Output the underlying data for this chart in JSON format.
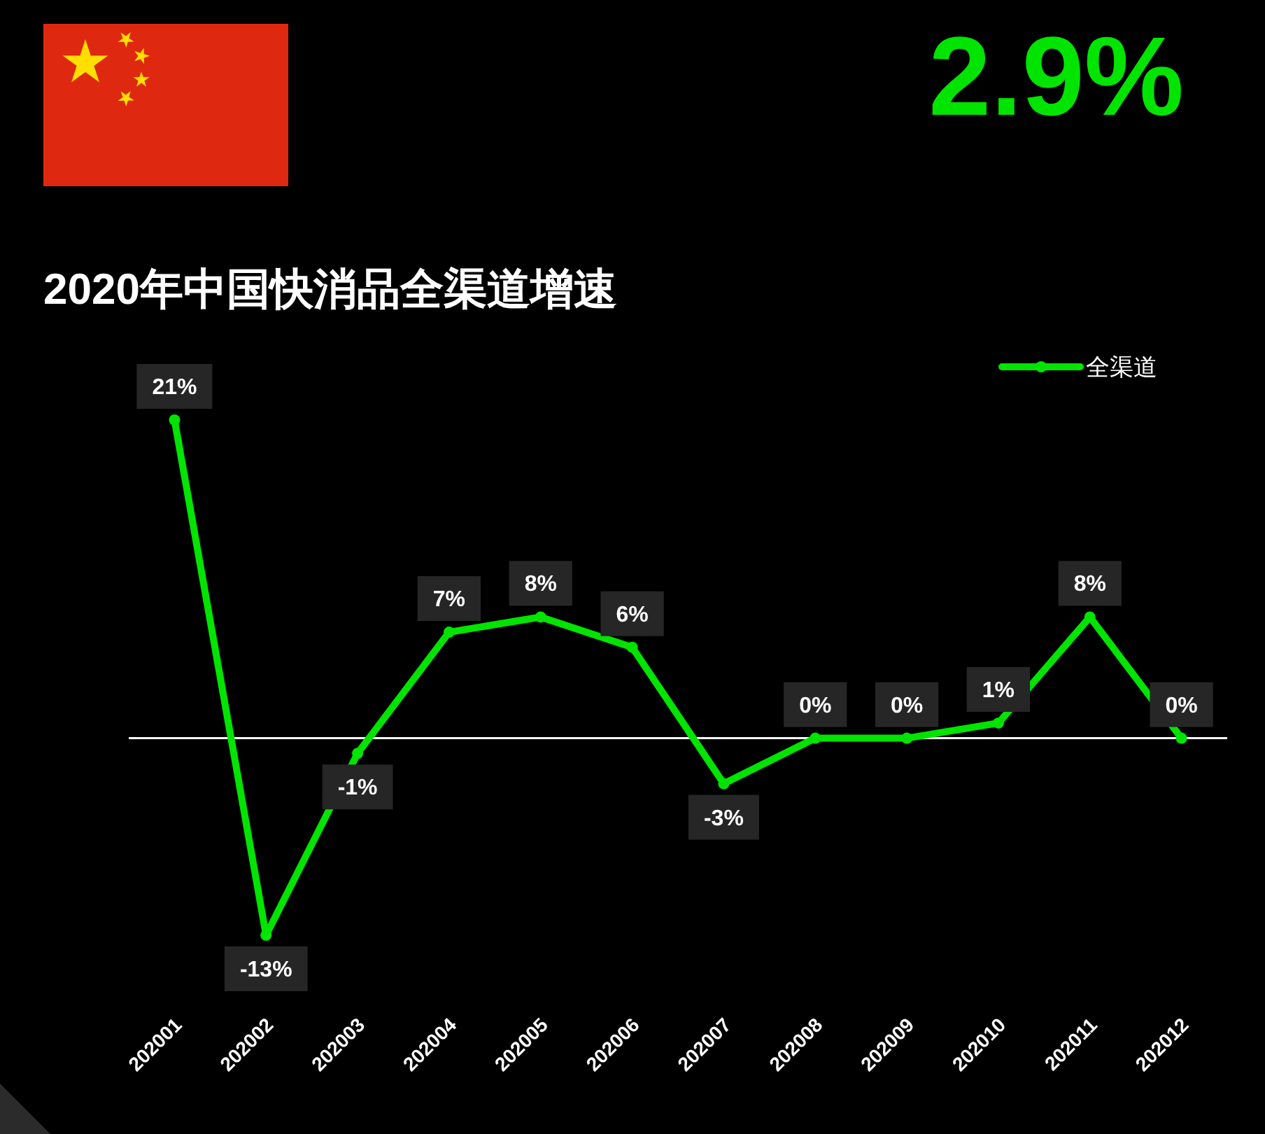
{
  "chart_data": {
    "type": "line",
    "title": "2020年中国快消品全渠道增速",
    "annotations": [
      "2.9%"
    ],
    "categories": [
      "202001",
      "202002",
      "202003",
      "202004",
      "202005",
      "202006",
      "202007",
      "202008",
      "202009",
      "202010",
      "202011",
      "202012"
    ],
    "series": [
      {
        "name": "全渠道",
        "color": "#00e400",
        "values": [
          21,
          -13,
          -1,
          7,
          8,
          6,
          -3,
          0,
          0,
          1,
          8,
          0
        ],
        "value_labels": [
          "21%",
          "-13%",
          "-1%",
          "7%",
          "8%",
          "6%",
          "-3%",
          "0%",
          "0%",
          "1%",
          "8%",
          "0%"
        ]
      }
    ],
    "legend": "top right",
    "marker": "circle",
    "grid": false
  }
}
